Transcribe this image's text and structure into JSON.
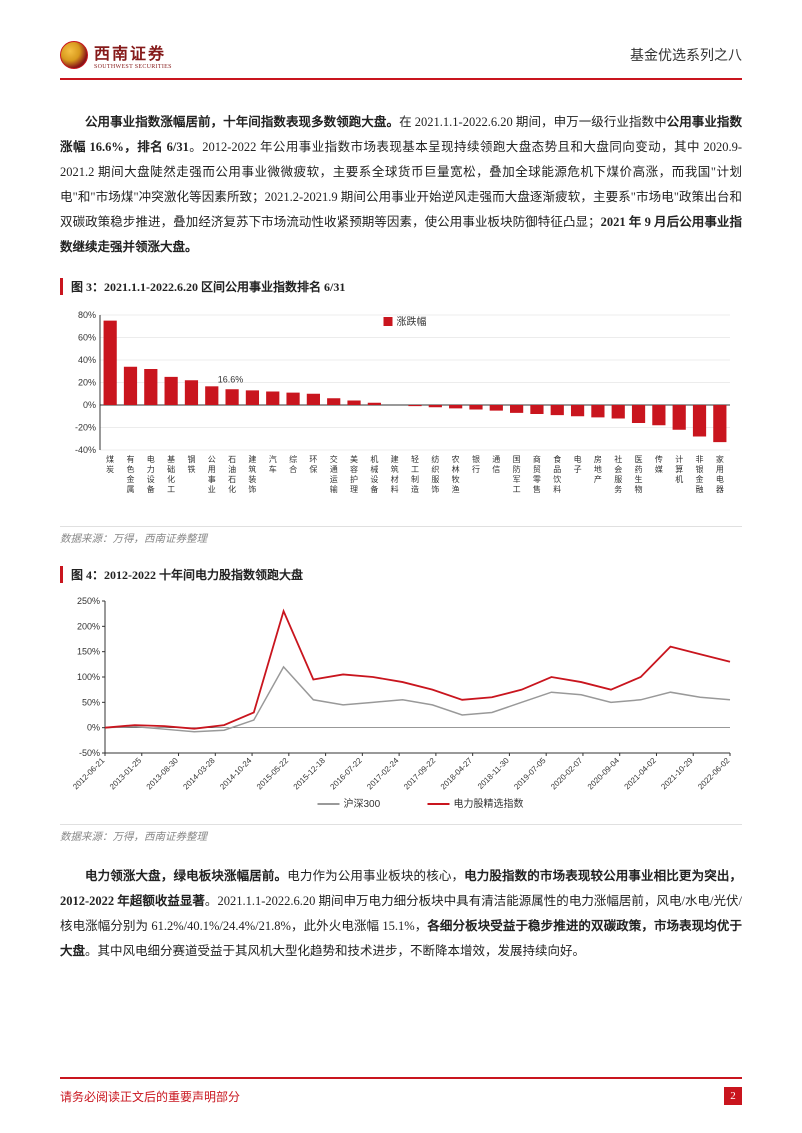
{
  "header": {
    "logo_cn": "西南证券",
    "logo_en": "SOUTHWEST SECURITIES",
    "right_text": "基金优选系列之八"
  },
  "paragraph1": {
    "lead": "公用事业指数涨幅居前，十年间指数表现多数领跑大盘。",
    "t1": "在 2021.1.1-2022.6.20 期间，申万一级行业指数中",
    "b1": "公用事业指数涨幅 16.6%，排名 6/31",
    "t2": "。2012-2022 年公用事业指数市场表现基本呈现持续领跑大盘态势且和大盘同向变动，其中 2020.9-2021.2 期间大盘陡然走强而公用事业微微疲软，主要系全球货币巨量宽松，叠加全球能源危机下煤价高涨，而我国\"计划电\"和\"市场煤\"冲突激化等因素所致；2021.2-2021.9 期间公用事业开始逆风走强而大盘逐渐疲软，主要系\"市场电\"政策出台和双碳政策稳步推进，叠加经济复苏下市场流动性收紧预期等因素，使公用事业板块防御特征凸显；",
    "b2": "2021 年 9 月后公用事业指数继续走强并领涨大盘。"
  },
  "chart3": {
    "title": "图 3：2021.1.1-2022.6.20 区间公用事业指数排名 6/31",
    "source": "数据来源：万得，西南证券整理",
    "type": "bar",
    "legend_label": "涨跌幅",
    "bar_color": "#c9151e",
    "grid_color": "#d9d9d9",
    "axis_color": "#333333",
    "text_color": "#333333",
    "label_fontsize": 8,
    "axis_fontsize": 9,
    "annotation": "16.6%",
    "annotation_index": 5,
    "y_ticks": [
      "80%",
      "60%",
      "40%",
      "20%",
      "0%",
      "-20%",
      "-40%"
    ],
    "y_values": [
      80,
      60,
      40,
      20,
      0,
      -20,
      -40
    ],
    "categories": [
      "煤炭",
      "有色金属",
      "电力设备",
      "基础化工",
      "钢铁",
      "公用事业",
      "石油石化",
      "建筑装饰",
      "汽车",
      "综合",
      "环保",
      "交通运输",
      "美容护理",
      "机械设备",
      "建筑材料",
      "轻工制造",
      "纺织服饰",
      "农林牧渔",
      "银行",
      "通信",
      "国防军工",
      "商贸零售",
      "食品饮料",
      "电子",
      "房地产",
      "社会服务",
      "医药生物",
      "传媒",
      "计算机",
      "非银金融",
      "家用电器"
    ],
    "values": [
      75,
      34,
      32,
      25,
      22,
      16.6,
      14,
      13,
      12,
      11,
      10,
      6,
      4,
      2,
      0,
      -1,
      -2,
      -3,
      -4,
      -5,
      -7,
      -8,
      -9,
      -10,
      -11,
      -12,
      -16,
      -18,
      -22,
      -28,
      -33
    ]
  },
  "chart4": {
    "title": "图 4：2012-2022 十年间电力股指数领跑大盘",
    "source": "数据来源：万得，西南证券整理",
    "type": "line",
    "grid_color": "#ffffff",
    "axis_color": "#333333",
    "text_color": "#333333",
    "axis_fontsize": 9,
    "label_fontsize": 8,
    "y_ticks": [
      "250%",
      "200%",
      "150%",
      "100%",
      "50%",
      "0%",
      "-50%"
    ],
    "y_values": [
      250,
      200,
      150,
      100,
      50,
      0,
      -50
    ],
    "x_labels": [
      "2012-06-21",
      "2013-01-25",
      "2013-08-30",
      "2014-03-28",
      "2014-10-24",
      "2015-05-22",
      "2015-12-18",
      "2016-07-22",
      "2017-02-24",
      "2017-09-22",
      "2018-04-27",
      "2018-11-30",
      "2019-07-05",
      "2020-02-07",
      "2020-09-04",
      "2021-04-02",
      "2021-10-29",
      "2022-06-02"
    ],
    "series": [
      {
        "name": "沪深300",
        "color": "#999999",
        "width": 1.5,
        "data": [
          0,
          2,
          -3,
          -8,
          -5,
          15,
          120,
          55,
          45,
          50,
          55,
          45,
          25,
          30,
          50,
          70,
          65,
          50,
          55,
          70,
          60,
          55
        ]
      },
      {
        "name": "电力股精选指数",
        "color": "#c9151e",
        "width": 1.8,
        "data": [
          0,
          5,
          3,
          -2,
          5,
          30,
          230,
          95,
          105,
          100,
          90,
          75,
          55,
          60,
          75,
          100,
          90,
          75,
          100,
          160,
          145,
          130
        ]
      }
    ]
  },
  "paragraph2": {
    "lead": "电力领涨大盘，绿电板块涨幅居前。",
    "t1": "电力作为公用事业板块的核心，",
    "b1": "电力股指数的市场表现较公用事业相比更为突出，2012-2022 年超额收益显著",
    "t2": "。2021.1.1-2022.6.20 期间申万电力细分板块中具有清洁能源属性的电力涨幅居前，风电/水电/光伏/核电涨幅分别为 61.2%/40.1%/24.4%/21.8%，此外火电涨幅 15.1%，",
    "b2": "各细分板块受益于稳步推进的双碳政策，市场表现均优于大盘",
    "t3": "。其中风电细分赛道受益于其风机大型化趋势和技术进步，不断降本增效，发展持续向好。"
  },
  "footer": {
    "left_text": "请务必阅读正文后的重要声明部分",
    "page_number": "2"
  }
}
